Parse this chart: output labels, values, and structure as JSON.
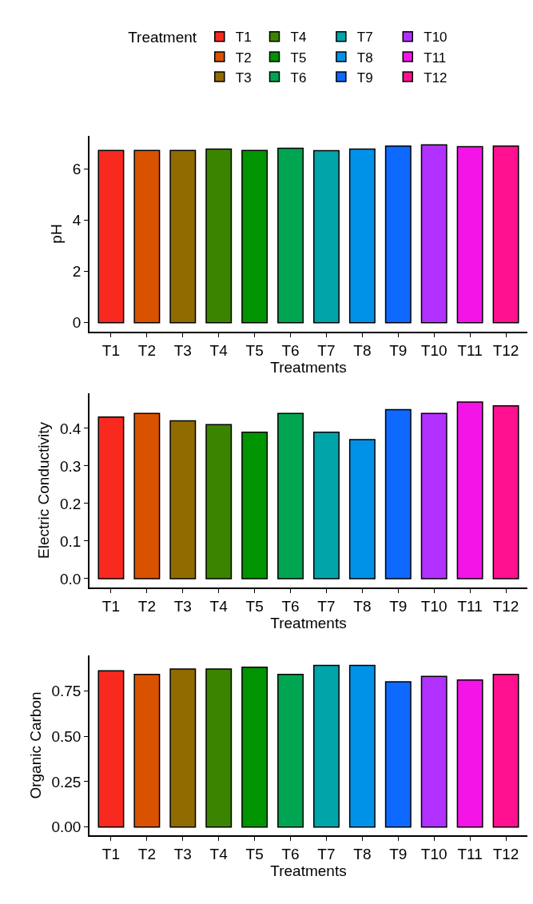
{
  "chart_data": [
    {
      "type": "bar",
      "categories": [
        "T1",
        "T2",
        "T3",
        "T4",
        "T5",
        "T6",
        "T7",
        "T8",
        "T9",
        "T10",
        "T11",
        "T12"
      ],
      "xlabel": "Treatments",
      "ylabel": "pH",
      "ylim": [
        -0.35,
        7.28
      ],
      "yticks": [
        0,
        2,
        4,
        6
      ],
      "legend": "top",
      "legend_title": "Treatment",
      "series": [
        {
          "name": "T1",
          "color": "#f8291f",
          "values": [
            6.71,
            null,
            null,
            null,
            null,
            null,
            null,
            null,
            null,
            null,
            null,
            null
          ]
        },
        {
          "name": "T2",
          "color": "#d95200",
          "values": [
            null,
            6.71,
            null,
            null,
            null,
            null,
            null,
            null,
            null,
            null,
            null,
            null
          ]
        },
        {
          "name": "T3",
          "color": "#906c00",
          "values": [
            null,
            null,
            6.71,
            null,
            null,
            null,
            null,
            null,
            null,
            null,
            null,
            null
          ]
        },
        {
          "name": "T4",
          "color": "#3b8400",
          "values": [
            null,
            null,
            null,
            6.77,
            null,
            null,
            null,
            null,
            null,
            null,
            null,
            null
          ]
        },
        {
          "name": "T5",
          "color": "#009400",
          "values": [
            null,
            null,
            null,
            null,
            6.71,
            null,
            null,
            null,
            null,
            null,
            null,
            null
          ]
        },
        {
          "name": "T6",
          "color": "#00a552",
          "values": [
            null,
            null,
            null,
            null,
            null,
            6.8,
            null,
            null,
            null,
            null,
            null,
            null
          ]
        },
        {
          "name": "T7",
          "color": "#00a5aa",
          "values": [
            null,
            null,
            null,
            null,
            null,
            null,
            6.7,
            null,
            null,
            null,
            null,
            null
          ]
        },
        {
          "name": "T8",
          "color": "#0092e8",
          "values": [
            null,
            null,
            null,
            null,
            null,
            null,
            null,
            6.77,
            null,
            null,
            null,
            null
          ]
        },
        {
          "name": "T9",
          "color": "#0d69ff",
          "values": [
            null,
            null,
            null,
            null,
            null,
            null,
            null,
            null,
            6.88,
            null,
            null,
            null
          ]
        },
        {
          "name": "T10",
          "color": "#b131ff",
          "values": [
            null,
            null,
            null,
            null,
            null,
            null,
            null,
            null,
            null,
            6.93,
            null,
            null
          ]
        },
        {
          "name": "T11",
          "color": "#f414e8",
          "values": [
            null,
            null,
            null,
            null,
            null,
            null,
            null,
            null,
            null,
            null,
            6.86,
            null
          ]
        },
        {
          "name": "T12",
          "color": "#ff1190",
          "values": [
            null,
            null,
            null,
            null,
            null,
            null,
            null,
            null,
            null,
            null,
            null,
            6.88
          ]
        }
      ]
    },
    {
      "type": "bar",
      "categories": [
        "T1",
        "T2",
        "T3",
        "T4",
        "T5",
        "T6",
        "T7",
        "T8",
        "T9",
        "T10",
        "T11",
        "T12"
      ],
      "xlabel": "Treatments",
      "ylabel": "Electric Conductivity",
      "ylim": [
        -0.0235,
        0.4935
      ],
      "yticks": [
        {
          "value": 0,
          "label": "0.0"
        },
        0.1,
        0.2,
        0.3,
        0.4
      ],
      "series": [
        {
          "color": "#f8291f",
          "values": [
            0.43,
            null,
            null,
            null,
            null,
            null,
            null,
            null,
            null,
            null,
            null,
            null
          ]
        },
        {
          "color": "#d95200",
          "values": [
            null,
            0.44,
            null,
            null,
            null,
            null,
            null,
            null,
            null,
            null,
            null,
            null
          ]
        },
        {
          "color": "#906c00",
          "values": [
            null,
            null,
            0.42,
            null,
            null,
            null,
            null,
            null,
            null,
            null,
            null,
            null
          ]
        },
        {
          "color": "#3b8400",
          "values": [
            null,
            null,
            null,
            0.41,
            null,
            null,
            null,
            null,
            null,
            null,
            null,
            null
          ]
        },
        {
          "color": "#009400",
          "values": [
            null,
            null,
            null,
            null,
            0.39,
            null,
            null,
            null,
            null,
            null,
            null,
            null
          ]
        },
        {
          "color": "#00a552",
          "values": [
            null,
            null,
            null,
            null,
            null,
            0.44,
            null,
            null,
            null,
            null,
            null,
            null
          ]
        },
        {
          "color": "#00a5aa",
          "values": [
            null,
            null,
            null,
            null,
            null,
            null,
            0.39,
            null,
            null,
            null,
            null,
            null
          ]
        },
        {
          "color": "#0092e8",
          "values": [
            null,
            null,
            null,
            null,
            null,
            null,
            null,
            0.37,
            null,
            null,
            null,
            null
          ]
        },
        {
          "color": "#0d69ff",
          "values": [
            null,
            null,
            null,
            null,
            null,
            null,
            null,
            null,
            0.45,
            null,
            null,
            null
          ]
        },
        {
          "color": "#b131ff",
          "values": [
            null,
            null,
            null,
            null,
            null,
            null,
            null,
            null,
            null,
            0.44,
            null,
            null
          ]
        },
        {
          "color": "#f414e8",
          "values": [
            null,
            null,
            null,
            null,
            null,
            null,
            null,
            null,
            null,
            null,
            0.47,
            null
          ]
        },
        {
          "color": "#ff1190",
          "values": [
            null,
            null,
            null,
            null,
            null,
            null,
            null,
            null,
            null,
            null,
            null,
            0.46
          ]
        }
      ]
    },
    {
      "type": "bar",
      "categories": [
        "T1",
        "T2",
        "T3",
        "T4",
        "T5",
        "T6",
        "T7",
        "T8",
        "T9",
        "T10",
        "T11",
        "T12"
      ],
      "xlabel": "Treatments",
      "ylabel": "Organic Carbon",
      "ylim": [
        -0.045,
        0.945
      ],
      "yticks": [
        {
          "value": 0,
          "label": "0.00"
        },
        {
          "value": 0.25,
          "label": "0.25"
        },
        {
          "value": 0.5,
          "label": "0.50"
        },
        {
          "value": 0.75,
          "label": "0.75"
        }
      ],
      "series": [
        {
          "color": "#f8291f",
          "values": [
            0.86,
            null,
            null,
            null,
            null,
            null,
            null,
            null,
            null,
            null,
            null,
            null
          ]
        },
        {
          "color": "#d95200",
          "values": [
            null,
            0.84,
            null,
            null,
            null,
            null,
            null,
            null,
            null,
            null,
            null,
            null
          ]
        },
        {
          "color": "#906c00",
          "values": [
            null,
            null,
            0.87,
            null,
            null,
            null,
            null,
            null,
            null,
            null,
            null,
            null
          ]
        },
        {
          "color": "#3b8400",
          "values": [
            null,
            null,
            null,
            0.87,
            null,
            null,
            null,
            null,
            null,
            null,
            null,
            null
          ]
        },
        {
          "color": "#009400",
          "values": [
            null,
            null,
            null,
            null,
            0.88,
            null,
            null,
            null,
            null,
            null,
            null,
            null
          ]
        },
        {
          "color": "#00a552",
          "values": [
            null,
            null,
            null,
            null,
            null,
            0.84,
            null,
            null,
            null,
            null,
            null,
            null
          ]
        },
        {
          "color": "#00a5aa",
          "values": [
            null,
            null,
            null,
            null,
            null,
            null,
            0.89,
            null,
            null,
            null,
            null,
            null
          ]
        },
        {
          "color": "#0092e8",
          "values": [
            null,
            null,
            null,
            null,
            null,
            null,
            null,
            0.89,
            null,
            null,
            null,
            null
          ]
        },
        {
          "color": "#0d69ff",
          "values": [
            null,
            null,
            null,
            null,
            null,
            null,
            null,
            null,
            0.8,
            null,
            null,
            null
          ]
        },
        {
          "color": "#b131ff",
          "values": [
            null,
            null,
            null,
            null,
            null,
            null,
            null,
            null,
            null,
            0.83,
            null,
            null
          ]
        },
        {
          "color": "#f414e8",
          "values": [
            null,
            null,
            null,
            null,
            null,
            null,
            null,
            null,
            null,
            null,
            0.81,
            null
          ]
        },
        {
          "color": "#ff1190",
          "values": [
            null,
            null,
            null,
            null,
            null,
            null,
            null,
            null,
            null,
            null,
            null,
            0.84
          ]
        }
      ]
    }
  ]
}
